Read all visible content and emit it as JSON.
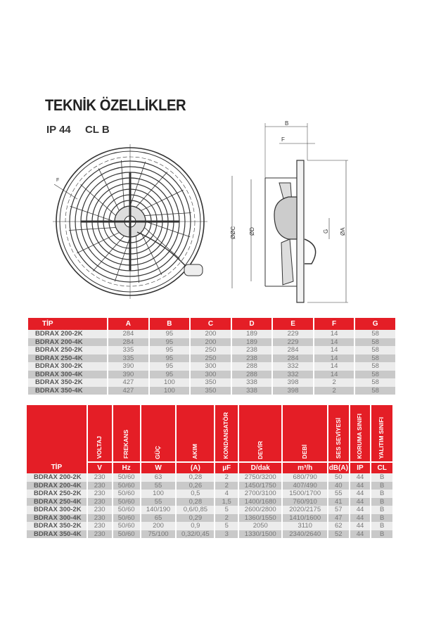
{
  "title": "TEKNİK ÖZELLİKLER",
  "ratings": [
    "IP 44",
    "CL B"
  ],
  "drawing_labels": {
    "front_f": "F",
    "b": "B",
    "f": "F",
    "c": "ØØC",
    "d": "ØD",
    "g": "G",
    "a": "ØA"
  },
  "colors": {
    "header": "#e41e26"
  },
  "dimensions_table": {
    "headers": [
      "TİP",
      "A",
      "B",
      "C",
      "D",
      "E",
      "F",
      "G"
    ],
    "rows": [
      [
        "BDRAX 200-2K",
        "284",
        "95",
        "200",
        "189",
        "229",
        "14",
        "58"
      ],
      [
        "BDRAX 200-4K",
        "284",
        "95",
        "200",
        "189",
        "229",
        "14",
        "58"
      ],
      [
        "BDRAX 250-2K",
        "335",
        "95",
        "250",
        "238",
        "284",
        "14",
        "58"
      ],
      [
        "BDRAX 250-4K",
        "335",
        "95",
        "250",
        "238",
        "284",
        "14",
        "58"
      ],
      [
        "BDRAX 300-2K",
        "390",
        "95",
        "300",
        "288",
        "332",
        "14",
        "58"
      ],
      [
        "BDRAX 300-4K",
        "390",
        "95",
        "300",
        "288",
        "332",
        "14",
        "58"
      ],
      [
        "BDRAX 350-2K",
        "427",
        "100",
        "350",
        "338",
        "398",
        "2",
        "58"
      ],
      [
        "BDRAX 350-4K",
        "427",
        "100",
        "350",
        "338",
        "398",
        "2",
        "58"
      ]
    ]
  },
  "specs_table": {
    "tip": "TİP",
    "headers": [
      "VOLTAJ",
      "FREKANS",
      "GÜÇ",
      "AKIM",
      "KONDANSATÖR",
      "DEVİR",
      "DEBİ",
      "SES SEVİYESİ",
      "KORUMA SINIFI",
      "YALITIM SINIFI"
    ],
    "units": [
      "V",
      "Hz",
      "W",
      "(A)",
      "µF",
      "D/dak",
      "m³/h",
      "dB(A)",
      "IP",
      "CL"
    ],
    "rows": [
      [
        "BDRAX 200-2K",
        "230",
        "50/60",
        "63",
        "0,28",
        "2",
        "2750/3200",
        "680/790",
        "50",
        "44",
        "B"
      ],
      [
        "BDRAX 200-4K",
        "230",
        "50/60",
        "55",
        "0,26",
        "2",
        "1450/1750",
        "407/490",
        "40",
        "44",
        "B"
      ],
      [
        "BDRAX 250-2K",
        "230",
        "50/60",
        "100",
        "0,5",
        "4",
        "2700/3100",
        "1500/1700",
        "55",
        "44",
        "B"
      ],
      [
        "BDRAX 250-4K",
        "230",
        "50/60",
        "55",
        "0,28",
        "1,5",
        "1400/1680",
        "760/910",
        "41",
        "44",
        "B"
      ],
      [
        "BDRAX 300-2K",
        "230",
        "50/60",
        "140/190",
        "0,6/0,85",
        "5",
        "2600/2800",
        "2020/2175",
        "57",
        "44",
        "B"
      ],
      [
        "BDRAX 300-4K",
        "230",
        "50/60",
        "65",
        "0,29",
        "2",
        "1360/1550",
        "1410/1600",
        "47",
        "44",
        "B"
      ],
      [
        "BDRAX 350-2K",
        "230",
        "50/60",
        "200",
        "0,9",
        "5",
        "2050",
        "3110",
        "62",
        "44",
        "B"
      ],
      [
        "BDRAX 350-4K",
        "230",
        "50/60",
        "75/100",
        "0,32/0,45",
        "3",
        "1330/1500",
        "2340/2640",
        "52",
        "44",
        "B"
      ]
    ]
  }
}
